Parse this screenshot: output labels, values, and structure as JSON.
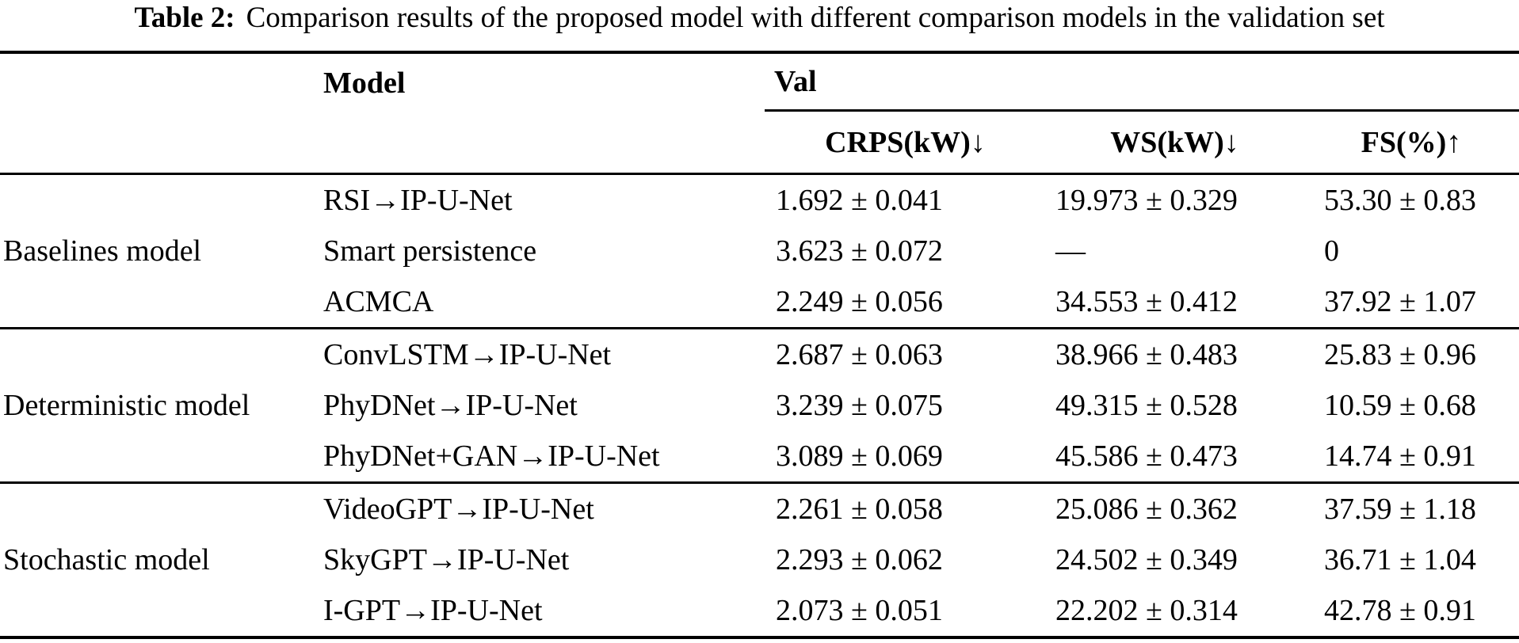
{
  "caption": {
    "label": "Table 2:",
    "text": "Comparison results of the proposed model with different comparison models in the validation set"
  },
  "table": {
    "headers": {
      "model": "Model",
      "val": "Val",
      "crps": "CRPS(kW)↓",
      "ws": "WS(kW)↓",
      "fs": "FS(%)↑"
    },
    "groups": [
      {
        "name": "Baselines model",
        "rows": [
          {
            "model": "RSI→IP-U-Net",
            "crps": "1.692 ± 0.041",
            "ws": "19.973 ± 0.329",
            "fs": "53.30 ± 0.83"
          },
          {
            "model": "Smart persistence",
            "crps": "3.623 ± 0.072",
            "ws": "—",
            "fs": "0"
          },
          {
            "model": "ACMCA",
            "crps": "2.249 ± 0.056",
            "ws": "34.553 ± 0.412",
            "fs": "37.92 ± 1.07"
          }
        ]
      },
      {
        "name": "Deterministic model",
        "rows": [
          {
            "model": "ConvLSTM→IP-U-Net",
            "crps": "2.687 ± 0.063",
            "ws": "38.966 ± 0.483",
            "fs": "25.83 ± 0.96"
          },
          {
            "model": "PhyDNet→IP-U-Net",
            "crps": "3.239 ± 0.075",
            "ws": "49.315 ± 0.528",
            "fs": "10.59 ± 0.68"
          },
          {
            "model": "PhyDNet+GAN→IP-U-Net",
            "crps": "3.089 ± 0.069",
            "ws": "45.586 ± 0.473",
            "fs": "14.74 ± 0.91"
          }
        ]
      },
      {
        "name": "Stochastic model",
        "rows": [
          {
            "model": "VideoGPT→IP-U-Net",
            "crps": "2.261 ± 0.058",
            "ws": "25.086 ± 0.362",
            "fs": "37.59 ± 1.18"
          },
          {
            "model": "SkyGPT→IP-U-Net",
            "crps": "2.293 ± 0.062",
            "ws": "24.502 ± 0.349",
            "fs": "36.71 ± 1.04"
          },
          {
            "model": "I-GPT→IP-U-Net",
            "crps": "2.073 ± 0.051",
            "ws": "22.202 ± 0.314",
            "fs": "42.78 ± 0.91"
          }
        ]
      }
    ]
  }
}
